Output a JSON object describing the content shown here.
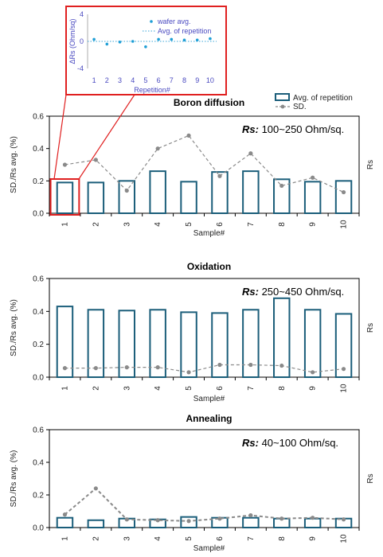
{
  "chart_data": [
    {
      "type": "bar",
      "title": "Boron diffusion",
      "annotation_label": "Rs:",
      "annotation_value": " 100~250 Ohm/sq.",
      "xlabel": "Sample#",
      "ylabel": "SD./Rs avg. (%)",
      "y2label": "Rs",
      "ylim": [
        0,
        0.6
      ],
      "yticks": [
        "0.0",
        "0.2",
        "0.4",
        "0.6"
      ],
      "categories": [
        "1",
        "2",
        "3",
        "4",
        "5",
        "6",
        "7",
        "8",
        "9",
        "10"
      ],
      "legend_position": "top-right",
      "series": [
        {
          "name": "Avg. of repetition",
          "kind": "bar",
          "values": [
            0.19,
            0.19,
            0.2,
            0.26,
            0.195,
            0.255,
            0.26,
            0.21,
            0.195,
            0.2
          ]
        },
        {
          "name": "SD.",
          "kind": "line",
          "values": [
            0.3,
            0.33,
            0.14,
            0.4,
            0.48,
            0.23,
            0.37,
            0.17,
            0.22,
            0.13
          ]
        }
      ],
      "highlight_category": "1"
    },
    {
      "type": "bar",
      "title": "Oxidation",
      "annotation_label": "Rs:",
      "annotation_value": " 250~450 Ohm/sq.",
      "xlabel": "Sample#",
      "ylabel": "SD./Rs avg. (%)",
      "y2label": "Rs",
      "ylim": [
        0,
        0.6
      ],
      "yticks": [
        "0.0",
        "0.2",
        "0.4",
        "0.6"
      ],
      "categories": [
        "1",
        "2",
        "3",
        "4",
        "5",
        "6",
        "7",
        "8",
        "9",
        "10"
      ],
      "series": [
        {
          "name": "Avg. of repetition",
          "kind": "bar",
          "values": [
            0.43,
            0.41,
            0.405,
            0.41,
            0.395,
            0.39,
            0.41,
            0.48,
            0.41,
            0.385
          ]
        },
        {
          "name": "SD.",
          "kind": "line",
          "values": [
            0.055,
            0.055,
            0.06,
            0.06,
            0.03,
            0.075,
            0.075,
            0.07,
            0.03,
            0.05
          ]
        }
      ]
    },
    {
      "type": "bar",
      "title": "Annealing",
      "annotation_label": "Rs:",
      "annotation_value": " 40~100 Ohm/sq.",
      "xlabel": "Sample#",
      "ylabel": "SD./Rs avg. (%)",
      "y2label": "Rs",
      "ylim": [
        0,
        0.6
      ],
      "yticks": [
        "0.0",
        "0.2",
        "0.4",
        "0.6"
      ],
      "categories": [
        "1",
        "2",
        "3",
        "4",
        "5",
        "6",
        "7",
        "8",
        "9",
        "10"
      ],
      "series": [
        {
          "name": "Avg. of repetition",
          "kind": "bar",
          "values": [
            0.06,
            0.045,
            0.055,
            0.05,
            0.065,
            0.06,
            0.06,
            0.055,
            0.055,
            0.055
          ]
        },
        {
          "name": "SD.",
          "kind": "line",
          "values": [
            0.08,
            0.24,
            0.05,
            0.045,
            0.04,
            0.055,
            0.075,
            0.055,
            0.06,
            0.05
          ]
        }
      ]
    },
    {
      "type": "scatter",
      "inset": true,
      "xlabel": "Repetition#",
      "ylabel": "ΔRs (Ohm/sq)",
      "ylim": [
        -4,
        4
      ],
      "yticks": [
        "4",
        "0",
        "-4"
      ],
      "categories": [
        "1",
        "2",
        "3",
        "4",
        "5",
        "6",
        "7",
        "8",
        "9",
        "10"
      ],
      "series": [
        {
          "name": "wafer avg.",
          "kind": "points",
          "values": [
            0.3,
            -0.4,
            -0.1,
            0.0,
            -0.8,
            0.3,
            0.3,
            0.2,
            0.2,
            0.4
          ]
        },
        {
          "name": "Avg. of repetition",
          "kind": "dotted-line",
          "value": 0
        }
      ]
    }
  ]
}
